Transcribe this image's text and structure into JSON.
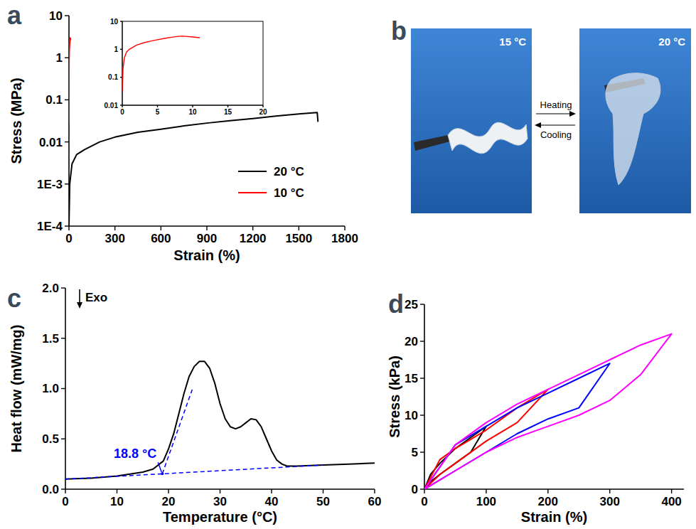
{
  "chart_data": [
    {
      "panel_label": "a",
      "type": "line",
      "log": "y",
      "x_label": "Strain (%)",
      "y_label": "Stress (MPa)",
      "xlim": [
        0,
        1800
      ],
      "xticks": [
        0,
        300,
        600,
        900,
        1200,
        1500,
        1800
      ],
      "ylim": [
        0.0001,
        10
      ],
      "yticks": [
        {
          "value": 0.0001,
          "label": "1E-4"
        },
        {
          "value": 0.001,
          "label": "1E-3"
        },
        0.01,
        0.1,
        1,
        10
      ],
      "legend": "right",
      "series": [
        {
          "name": "20 °C",
          "color": "#000000",
          "x": [
            0,
            5,
            20,
            50,
            100,
            200,
            300,
            450,
            600,
            750,
            900,
            1050,
            1200,
            1350,
            1500,
            1620,
            1625
          ],
          "values": [
            0.0001,
            0.001,
            0.003,
            0.005,
            0.0065,
            0.01,
            0.013,
            0.017,
            0.02,
            0.024,
            0.028,
            0.032,
            0.036,
            0.041,
            0.046,
            0.05,
            0.03
          ]
        },
        {
          "name": "10 °C",
          "color": "#ff0000",
          "x": [
            0,
            0.1,
            0.3,
            0.6,
            1,
            2,
            3,
            4,
            5,
            6,
            7,
            8,
            8.5,
            9,
            10,
            11
          ],
          "values": [
            0.03,
            0.2,
            0.5,
            0.8,
            1.0,
            1.4,
            1.7,
            1.95,
            2.2,
            2.45,
            2.7,
            2.9,
            2.95,
            2.9,
            2.75,
            2.6
          ]
        }
      ]
    },
    {
      "type": "line",
      "log": "y",
      "xlim": [
        0,
        20
      ],
      "xticks": [
        0,
        5,
        10,
        15,
        20
      ],
      "ylim": [
        0.01,
        10
      ],
      "yticks": [
        0.01,
        0.1,
        1,
        10
      ],
      "series": [
        {
          "color": "#ff0000",
          "x": [
            0,
            0.1,
            0.3,
            0.6,
            1,
            2,
            3,
            4,
            5,
            6,
            7,
            8,
            8.5,
            9,
            10,
            11
          ],
          "values": [
            0.03,
            0.2,
            0.5,
            0.8,
            1.0,
            1.4,
            1.7,
            1.95,
            2.2,
            2.45,
            2.7,
            2.9,
            2.95,
            2.9,
            2.75,
            2.6
          ]
        }
      ]
    },
    {
      "panel_label": "c",
      "type": "line",
      "x_label": "Temperature (°C)",
      "y_label": "Heat flow (mW/mg)",
      "exo_label": "Exo",
      "xlim": [
        0,
        60
      ],
      "xticks": [
        0,
        10,
        20,
        30,
        40,
        50,
        60
      ],
      "ylim": [
        0,
        2.0
      ],
      "yticks": [
        {
          "value": 0,
          "label": "0.0"
        },
        0.5,
        {
          "value": 1,
          "label": "1.0"
        },
        1.5,
        {
          "value": 2,
          "label": "2.0"
        }
      ],
      "annotations": [
        {
          "text": "18.8 °C",
          "x": 18.8,
          "y": 0.153,
          "color": "#0000ff"
        }
      ],
      "series": [
        {
          "color": "#000000",
          "x": [
            0,
            5,
            10,
            15,
            17,
            19,
            20,
            21,
            22,
            23,
            24,
            25,
            26,
            27,
            28,
            29,
            30,
            31,
            32,
            33,
            34,
            35,
            36,
            37,
            38,
            39,
            40,
            41,
            42,
            43,
            45,
            50,
            55,
            60
          ],
          "values": [
            0.1,
            0.11,
            0.13,
            0.17,
            0.2,
            0.28,
            0.4,
            0.55,
            0.75,
            0.95,
            1.12,
            1.22,
            1.27,
            1.27,
            1.2,
            1.05,
            0.85,
            0.7,
            0.62,
            0.6,
            0.62,
            0.66,
            0.7,
            0.69,
            0.62,
            0.5,
            0.38,
            0.29,
            0.25,
            0.23,
            0.23,
            0.24,
            0.25,
            0.26
          ]
        },
        {
          "color": "#0000ff",
          "line_style": "dashed",
          "x": [
            0,
            50
          ],
          "values": [
            0.1,
            0.24
          ]
        },
        {
          "color": "#0000ff",
          "line_style": "dashed",
          "x": [
            18.8,
            24.6
          ],
          "values": [
            0.153,
            0.99
          ]
        }
      ]
    },
    {
      "panel_label": "d",
      "type": "line",
      "x_label": "Strain (%)",
      "y_label": "Stress (kPa)",
      "xlim": [
        0,
        420
      ],
      "xticks": [
        0,
        100,
        200,
        300,
        400
      ],
      "ylim": [
        0,
        25
      ],
      "yticks": [
        0,
        5,
        10,
        15,
        20,
        25
      ],
      "series": [
        {
          "color": "#000000",
          "x": [
            0,
            10,
            25,
            50,
            75,
            100,
            75,
            50,
            25,
            10,
            0
          ],
          "values": [
            0,
            2,
            3.5,
            5.5,
            7,
            8.5,
            5,
            3.5,
            2,
            1,
            0
          ]
        },
        {
          "color": "#ff0000",
          "x": [
            0,
            25,
            50,
            100,
            150,
            200,
            150,
            100,
            50,
            25,
            0
          ],
          "values": [
            0,
            4,
            5.5,
            8,
            11,
            13.5,
            9,
            6.5,
            3.5,
            2,
            0
          ]
        },
        {
          "color": "#0000ff",
          "x": [
            0,
            50,
            100,
            150,
            200,
            250,
            300,
            250,
            200,
            150,
            100,
            50,
            0
          ],
          "values": [
            0,
            6,
            8.5,
            11,
            13,
            15,
            17,
            11,
            9.5,
            7.5,
            5,
            2.5,
            0
          ]
        },
        {
          "color": "#ff00ff",
          "x": [
            0,
            50,
            100,
            150,
            200,
            250,
            300,
            350,
            400,
            350,
            300,
            250,
            200,
            150,
            100,
            50,
            0
          ],
          "values": [
            0,
            6,
            9,
            11.5,
            13.5,
            15.5,
            17.5,
            19.5,
            21,
            15.5,
            12,
            10,
            8.5,
            7,
            5,
            2.5,
            0
          ]
        }
      ]
    }
  ],
  "panel_b": {
    "panel_label": "b",
    "left_label": "15 °C",
    "right_label": "20 °C",
    "forward_label": "Heating",
    "backward_label": "Cooling"
  }
}
